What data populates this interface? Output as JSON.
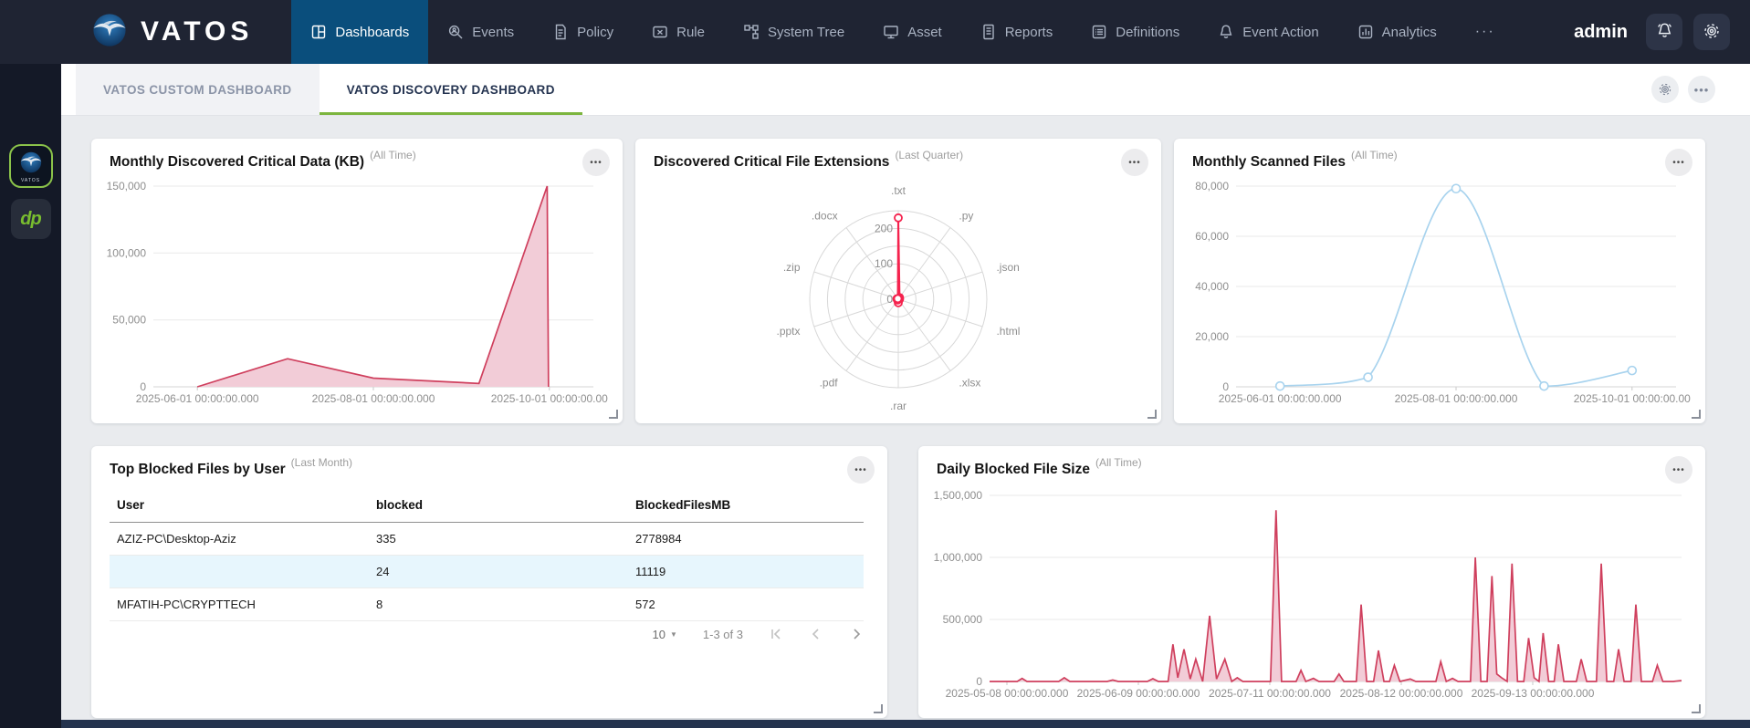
{
  "navbar": {
    "brand": "VATOS",
    "items": [
      {
        "label": "Dashboards",
        "icon": "dashboards-icon",
        "active": true
      },
      {
        "label": "Events",
        "icon": "events-icon",
        "active": false
      },
      {
        "label": "Policy",
        "icon": "policy-icon",
        "active": false
      },
      {
        "label": "Rule",
        "icon": "rule-icon",
        "active": false
      },
      {
        "label": "System Tree",
        "icon": "system-tree-icon",
        "active": false
      },
      {
        "label": "Asset",
        "icon": "asset-icon",
        "active": false
      },
      {
        "label": "Reports",
        "icon": "reports-icon",
        "active": false
      },
      {
        "label": "Definitions",
        "icon": "definitions-icon",
        "active": false
      },
      {
        "label": "Event Action",
        "icon": "event-action-icon",
        "active": false
      },
      {
        "label": "Analytics",
        "icon": "analytics-icon",
        "active": false
      },
      {
        "label": "",
        "icon": "more-horizontal-icon",
        "active": false
      }
    ],
    "user": "admin",
    "right_icons": [
      "notification-bell-icon",
      "gear-icon"
    ]
  },
  "sidebar": {
    "items": [
      {
        "icon": "vatos-logo-icon",
        "glyph": "VATOS",
        "active": true
      },
      {
        "icon": "dp-logo-icon",
        "glyph": "dp",
        "active": false
      }
    ]
  },
  "tabs": [
    {
      "label": "VATOS CUSTOM DASHBOARD",
      "active": false
    },
    {
      "label": "VATOS DISCOVERY DASHBOARD",
      "active": true
    }
  ],
  "tabstrip_icons": [
    "gear-icon",
    "ellipsis-icon"
  ],
  "colors": {
    "accent_green": "#7cb53e",
    "nav_active_blue": "#0a4e7c",
    "navbar_bg": "#1f2433",
    "highlighted_row": "#e7f6fd",
    "chart_red": "#cf3f5d",
    "chart_pink_fill": "#f2ccd7",
    "chart_light_blue": "#a8d3ee",
    "radar_red": "#f5234e"
  },
  "chart_data": [
    {
      "type": "area",
      "name": "critical-data-area-chart",
      "title": "Monthly Discovered Critical Data (KB)",
      "period": "(All Time)",
      "stroke": "#cf3f5d",
      "fill": "#f2ccd7",
      "ylim": [
        0,
        150000
      ],
      "ymax": 150000,
      "grid": true,
      "y_ticks": [
        {
          "v": 150000,
          "label": "150,000"
        },
        {
          "v": 100000,
          "label": "100,000"
        },
        {
          "v": 50000,
          "label": "50,000"
        },
        {
          "v": 0,
          "label": "0"
        }
      ],
      "x_ticks": [
        {
          "f": 0.1,
          "label": "2025-06-01 00:00:00.000"
        },
        {
          "f": 0.5,
          "label": "2025-08-01 00:00:00.000"
        },
        {
          "f": 0.9,
          "label": "2025-10-01 00:00:00.00"
        }
      ],
      "points": [
        [
          0.1,
          0
        ],
        [
          0.305,
          21000
        ],
        [
          0.5,
          6500
        ],
        [
          0.74,
          2500
        ],
        [
          0.895,
          150000
        ],
        [
          0.898,
          0
        ]
      ],
      "smooth": false,
      "markers": false
    },
    {
      "type": "radar",
      "name": "file-extensions-radar-chart",
      "title": "Discovered Critical File Extensions",
      "period": "(Last Quarter)",
      "stroke": "#f5234e",
      "max": 250,
      "rings": 5,
      "ring_labels": [
        {
          "v": 0,
          "label": "0"
        },
        {
          "v": 100,
          "label": "100"
        },
        {
          "v": 200,
          "label": "200"
        }
      ],
      "axes": [
        ".txt",
        ".py",
        ".json",
        ".html",
        ".xlsx",
        ".rar",
        ".pdf",
        ".pptx",
        ".zip",
        ".docx"
      ],
      "values": [
        230,
        6,
        4,
        3,
        2,
        10,
        3,
        2,
        4,
        2
      ]
    },
    {
      "type": "line",
      "name": "scanned-files-line-chart",
      "title": "Monthly Scanned Files",
      "period": "(All Time)",
      "stroke": "#a8d3ee",
      "ylim": [
        0,
        80000
      ],
      "ymax": 80000,
      "grid": true,
      "y_ticks": [
        {
          "v": 80000,
          "label": "80,000"
        },
        {
          "v": 60000,
          "label": "60,000"
        },
        {
          "v": 40000,
          "label": "40,000"
        },
        {
          "v": 20000,
          "label": "20,000"
        },
        {
          "v": 0,
          "label": "0"
        }
      ],
      "x_ticks": [
        {
          "f": 0.1,
          "label": "2025-06-01 00:00:00.000"
        },
        {
          "f": 0.5,
          "label": "2025-08-01 00:00:00.000"
        },
        {
          "f": 0.9,
          "label": "2025-10-01 00:00:00.00"
        }
      ],
      "points": [
        [
          0.1,
          300
        ],
        [
          0.3,
          3800
        ],
        [
          0.5,
          79000
        ],
        [
          0.7,
          300
        ],
        [
          0.9,
          6500
        ]
      ],
      "smooth": true,
      "markers": true
    },
    {
      "type": "table",
      "name": "top-blocked-files-table",
      "title": "Top Blocked Files by User",
      "period": "(Last Month)",
      "columns": [
        "User",
        "blocked",
        "BlockedFilesMB"
      ],
      "rows": [
        {
          "cells": [
            "AZIZ-PC\\Desktop-Aziz",
            "335",
            "2778984"
          ],
          "highlighted": false
        },
        {
          "cells": [
            "",
            "24",
            "11119"
          ],
          "highlighted": true
        },
        {
          "cells": [
            "MFATIH-PC\\CRYPTTECH",
            "8",
            "572"
          ],
          "highlighted": false
        }
      ],
      "pagination": {
        "page_size": "10",
        "range_label": "1-3 of 3"
      }
    },
    {
      "type": "area",
      "name": "blocked-size-area-chart",
      "title": "Daily Blocked File Size",
      "period": "(All Time)",
      "stroke": "#cf3f5d",
      "fill": "#f2ccd7",
      "ylim": [
        0,
        1500000
      ],
      "ymax": 1500000,
      "grid": true,
      "y_ticks": [
        {
          "v": 1500000,
          "label": "1,500,000"
        },
        {
          "v": 1000000,
          "label": "1,000,000"
        },
        {
          "v": 500000,
          "label": "500,000"
        },
        {
          "v": 0,
          "label": "0"
        }
      ],
      "x_ticks": [
        {
          "f": 0.025,
          "label": "2025-05-08 00:00:00.000"
        },
        {
          "f": 0.215,
          "label": "2025-06-09 00:00:00.000"
        },
        {
          "f": 0.405,
          "label": "2025-07-11 00:00:00.000"
        },
        {
          "f": 0.595,
          "label": "2025-08-12 00:00:00.000"
        },
        {
          "f": 0.785,
          "label": "2025-09-13 00:00:00.000"
        }
      ],
      "points": [
        [
          0,
          0
        ],
        [
          0.04,
          0
        ],
        [
          0.047,
          25000
        ],
        [
          0.054,
          0
        ],
        [
          0.1,
          0
        ],
        [
          0.108,
          30000
        ],
        [
          0.116,
          0
        ],
        [
          0.17,
          0
        ],
        [
          0.178,
          12000
        ],
        [
          0.186,
          0
        ],
        [
          0.228,
          0
        ],
        [
          0.236,
          22000
        ],
        [
          0.244,
          0
        ],
        [
          0.258,
          0
        ],
        [
          0.265,
          300000
        ],
        [
          0.272,
          30000
        ],
        [
          0.281,
          260000
        ],
        [
          0.29,
          20000
        ],
        [
          0.298,
          180000
        ],
        [
          0.308,
          0
        ],
        [
          0.318,
          530000
        ],
        [
          0.328,
          20000
        ],
        [
          0.34,
          180000
        ],
        [
          0.35,
          0
        ],
        [
          0.358,
          30000
        ],
        [
          0.366,
          0
        ],
        [
          0.406,
          0
        ],
        [
          0.414,
          1380000
        ],
        [
          0.422,
          0
        ],
        [
          0.443,
          0
        ],
        [
          0.45,
          90000
        ],
        [
          0.457,
          0
        ],
        [
          0.468,
          25000
        ],
        [
          0.476,
          0
        ],
        [
          0.498,
          0
        ],
        [
          0.505,
          60000
        ],
        [
          0.512,
          0
        ],
        [
          0.53,
          0
        ],
        [
          0.537,
          620000
        ],
        [
          0.545,
          0
        ],
        [
          0.555,
          0
        ],
        [
          0.562,
          250000
        ],
        [
          0.57,
          0
        ],
        [
          0.578,
          0
        ],
        [
          0.585,
          130000
        ],
        [
          0.593,
          0
        ],
        [
          0.608,
          20000
        ],
        [
          0.616,
          0
        ],
        [
          0.645,
          0
        ],
        [
          0.652,
          160000
        ],
        [
          0.66,
          0
        ],
        [
          0.669,
          25000
        ],
        [
          0.677,
          0
        ],
        [
          0.695,
          0
        ],
        [
          0.702,
          1000000
        ],
        [
          0.71,
          0
        ],
        [
          0.719,
          0
        ],
        [
          0.726,
          850000
        ],
        [
          0.733,
          60000
        ],
        [
          0.74,
          30000
        ],
        [
          0.748,
          0
        ],
        [
          0.755,
          950000
        ],
        [
          0.763,
          0
        ],
        [
          0.772,
          0
        ],
        [
          0.779,
          350000
        ],
        [
          0.787,
          30000
        ],
        [
          0.794,
          0
        ],
        [
          0.8,
          390000
        ],
        [
          0.808,
          0
        ],
        [
          0.816,
          0
        ],
        [
          0.822,
          300000
        ],
        [
          0.83,
          0
        ],
        [
          0.848,
          0
        ],
        [
          0.855,
          180000
        ],
        [
          0.863,
          0
        ],
        [
          0.877,
          0
        ],
        [
          0.884,
          950000
        ],
        [
          0.892,
          0
        ],
        [
          0.902,
          0
        ],
        [
          0.909,
          260000
        ],
        [
          0.917,
          0
        ],
        [
          0.927,
          0
        ],
        [
          0.934,
          620000
        ],
        [
          0.942,
          0
        ],
        [
          0.958,
          0
        ],
        [
          0.965,
          130000
        ],
        [
          0.973,
          0
        ],
        [
          0.988,
          0
        ],
        [
          1,
          8000
        ]
      ],
      "smooth": false,
      "markers": false
    }
  ]
}
